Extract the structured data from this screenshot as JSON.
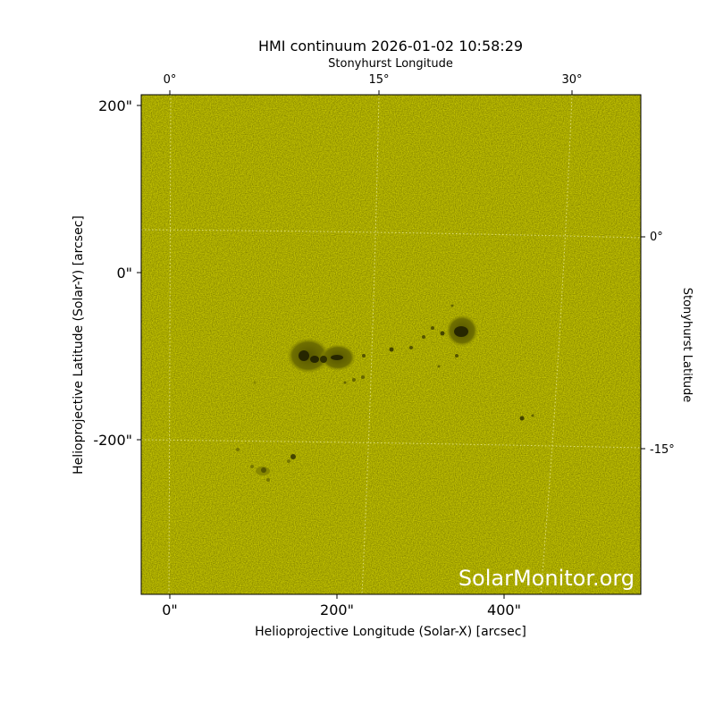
{
  "title": "HMI continuum 2026-01-02 10:58:29",
  "axes": {
    "x_label": "Helioprojective Longitude (Solar-X) [arcsec]",
    "y_label": "Helioprojective Latitude (Solar-Y) [arcsec]",
    "top_label": "Stonyhurst Longitude",
    "right_label": "Stonyhurst Latitude",
    "x_ticks": [
      "0\"",
      "200\"",
      "400\""
    ],
    "y_ticks": [
      "200\"",
      "0\"",
      "-200\""
    ],
    "top_ticks": [
      "0°",
      "15°",
      "30°"
    ],
    "right_ticks": [
      "0°",
      "-15°"
    ]
  },
  "watermark": "SolarMonitor.org"
}
